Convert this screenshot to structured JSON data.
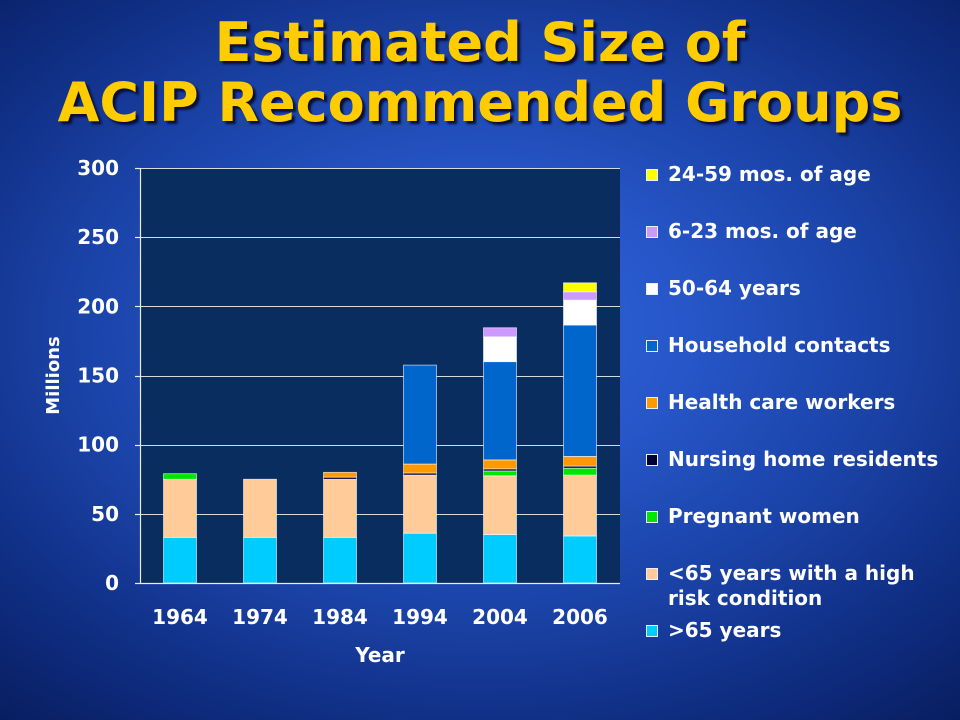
{
  "chart_data": {
    "type": "bar",
    "stacked": true,
    "title": [
      "Estimated Size of",
      "ACIP Recommended Groups"
    ],
    "xlabel": "Year",
    "ylabel": "Millions",
    "categories": [
      "1964",
      "1974",
      "1984",
      "1994",
      "2004",
      "2006"
    ],
    "ylim": [
      0,
      300
    ],
    "yticks": [
      0,
      50,
      100,
      150,
      200,
      250,
      300
    ],
    "grid": true,
    "legend": "right",
    "series": [
      {
        "name": ">65 years",
        "color": "#00ccff",
        "values": [
          33,
          33,
          33,
          36,
          35,
          34
        ]
      },
      {
        "name": "<65 years with a high risk condition",
        "color": "#ffcc99",
        "values": [
          42,
          42,
          42,
          42,
          42.5,
          44
        ]
      },
      {
        "name": "Pregnant women",
        "color": "#00e600",
        "values": [
          4,
          0,
          0,
          0,
          3.5,
          5
        ]
      },
      {
        "name": "Nursing home residents",
        "color": "#000033",
        "values": [
          0,
          0,
          1.5,
          1.5,
          1.5,
          1.5
        ]
      },
      {
        "name": "Health care workers",
        "color": "#ff9900",
        "values": [
          0,
          0,
          3.5,
          6.5,
          6.5,
          7
        ]
      },
      {
        "name": "Household contacts",
        "color": "#0066cc",
        "values": [
          0,
          0,
          0,
          71.5,
          71,
          95
        ]
      },
      {
        "name": "50-64 years",
        "color": "#ffffff",
        "values": [
          0,
          0,
          0,
          0,
          18,
          18
        ]
      },
      {
        "name": "6-23 mos. of age",
        "color": "#cc99ff",
        "values": [
          0,
          0,
          0,
          0,
          6.5,
          6
        ]
      },
      {
        "name": "24-59 mos. of age",
        "color": "#ffff00",
        "values": [
          0,
          0,
          0,
          0,
          0,
          6.5
        ]
      }
    ]
  }
}
